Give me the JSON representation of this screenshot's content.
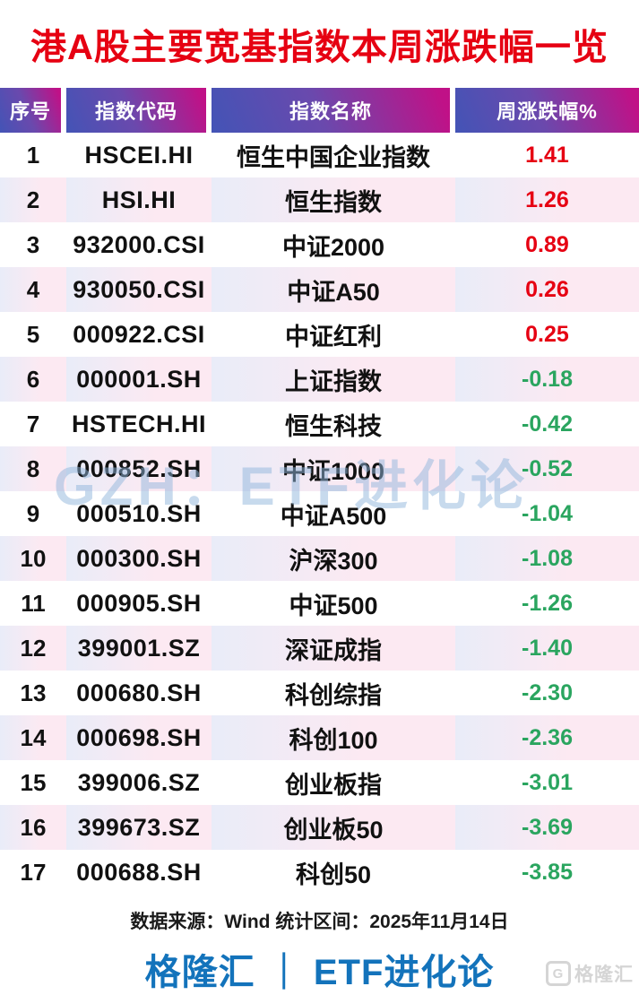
{
  "title": "港A股主要宽基指数本周涨跌幅一览",
  "table": {
    "headers": [
      "序号",
      "指数代码",
      "指数名称",
      "周涨跌幅%"
    ],
    "rows": [
      {
        "num": "1",
        "code": "HSCEI.HI",
        "name": "恒生中国企业指数",
        "change": "1.41",
        "direction": "pos"
      },
      {
        "num": "2",
        "code": "HSI.HI",
        "name": "恒生指数",
        "change": "1.26",
        "direction": "pos"
      },
      {
        "num": "3",
        "code": "932000.CSI",
        "name": "中证2000",
        "change": "0.89",
        "direction": "pos"
      },
      {
        "num": "4",
        "code": "930050.CSI",
        "name": "中证A50",
        "change": "0.26",
        "direction": "pos"
      },
      {
        "num": "5",
        "code": "000922.CSI",
        "name": "中证红利",
        "change": "0.25",
        "direction": "pos"
      },
      {
        "num": "6",
        "code": "000001.SH",
        "name": "上证指数",
        "change": "-0.18",
        "direction": "neg"
      },
      {
        "num": "7",
        "code": "HSTECH.HI",
        "name": "恒生科技",
        "change": "-0.42",
        "direction": "neg"
      },
      {
        "num": "8",
        "code": "000852.SH",
        "name": "中证1000",
        "change": "-0.52",
        "direction": "neg"
      },
      {
        "num": "9",
        "code": "000510.SH",
        "name": "中证A500",
        "change": "-1.04",
        "direction": "neg"
      },
      {
        "num": "10",
        "code": "000300.SH",
        "name": "沪深300",
        "change": "-1.08",
        "direction": "neg"
      },
      {
        "num": "11",
        "code": "000905.SH",
        "name": "中证500",
        "change": "-1.26",
        "direction": "neg"
      },
      {
        "num": "12",
        "code": "399001.SZ",
        "name": "深证成指",
        "change": "-1.40",
        "direction": "neg"
      },
      {
        "num": "13",
        "code": "000680.SH",
        "name": "科创综指",
        "change": "-2.30",
        "direction": "neg"
      },
      {
        "num": "14",
        "code": "000698.SH",
        "name": "科创100",
        "change": "-2.36",
        "direction": "neg"
      },
      {
        "num": "15",
        "code": "399006.SZ",
        "name": "创业板指",
        "change": "-3.01",
        "direction": "neg"
      },
      {
        "num": "16",
        "code": "399673.SZ",
        "name": "创业板50",
        "change": "-3.69",
        "direction": "neg"
      },
      {
        "num": "17",
        "code": "000688.SH",
        "name": "科创50",
        "change": "-3.85",
        "direction": "neg"
      }
    ]
  },
  "footer": {
    "source_line": "数据来源：Wind 统计区间：2025年11月14日",
    "branding": "格隆汇 ｜ ETF进化论"
  },
  "watermark": "GZH：ETF进化论",
  "corner_logo": {
    "icon": "G",
    "label": "格隆汇"
  },
  "colors": {
    "title_red": "#e60012",
    "positive_red": "#e60012",
    "negative_green": "#2aa55f",
    "header_gradient_start": "#4354b6",
    "header_gradient_end": "#c01187",
    "branding_blue": "#1373bb",
    "watermark_blue": "#90b6db",
    "even_row_start": "#e9ecf8",
    "even_row_end": "#fce9f2"
  },
  "chart_data": {
    "type": "table",
    "title": "港A股主要宽基指数本周涨跌幅一览",
    "columns": [
      "序号",
      "指数代码",
      "指数名称",
      "周涨跌幅%"
    ],
    "categories": [
      "恒生中国企业指数",
      "恒生指数",
      "中证2000",
      "中证A50",
      "中证红利",
      "上证指数",
      "恒生科技",
      "中证1000",
      "中证A500",
      "沪深300",
      "中证500",
      "深证成指",
      "科创综指",
      "科创100",
      "创业板指",
      "创业板50",
      "科创50"
    ],
    "codes": [
      "HSCEI.HI",
      "HSI.HI",
      "932000.CSI",
      "930050.CSI",
      "000922.CSI",
      "000001.SH",
      "HSTECH.HI",
      "000852.SH",
      "000510.SH",
      "000300.SH",
      "000905.SH",
      "399001.SZ",
      "000680.SH",
      "000698.SH",
      "399006.SZ",
      "399673.SZ",
      "000688.SH"
    ],
    "values": [
      1.41,
      1.26,
      0.89,
      0.26,
      0.25,
      -0.18,
      -0.42,
      -0.52,
      -1.04,
      -1.08,
      -1.26,
      -1.4,
      -2.3,
      -2.36,
      -3.01,
      -3.69,
      -3.85
    ],
    "value_unit": "percent",
    "source": "Wind",
    "period_end": "2025年11月14日"
  }
}
